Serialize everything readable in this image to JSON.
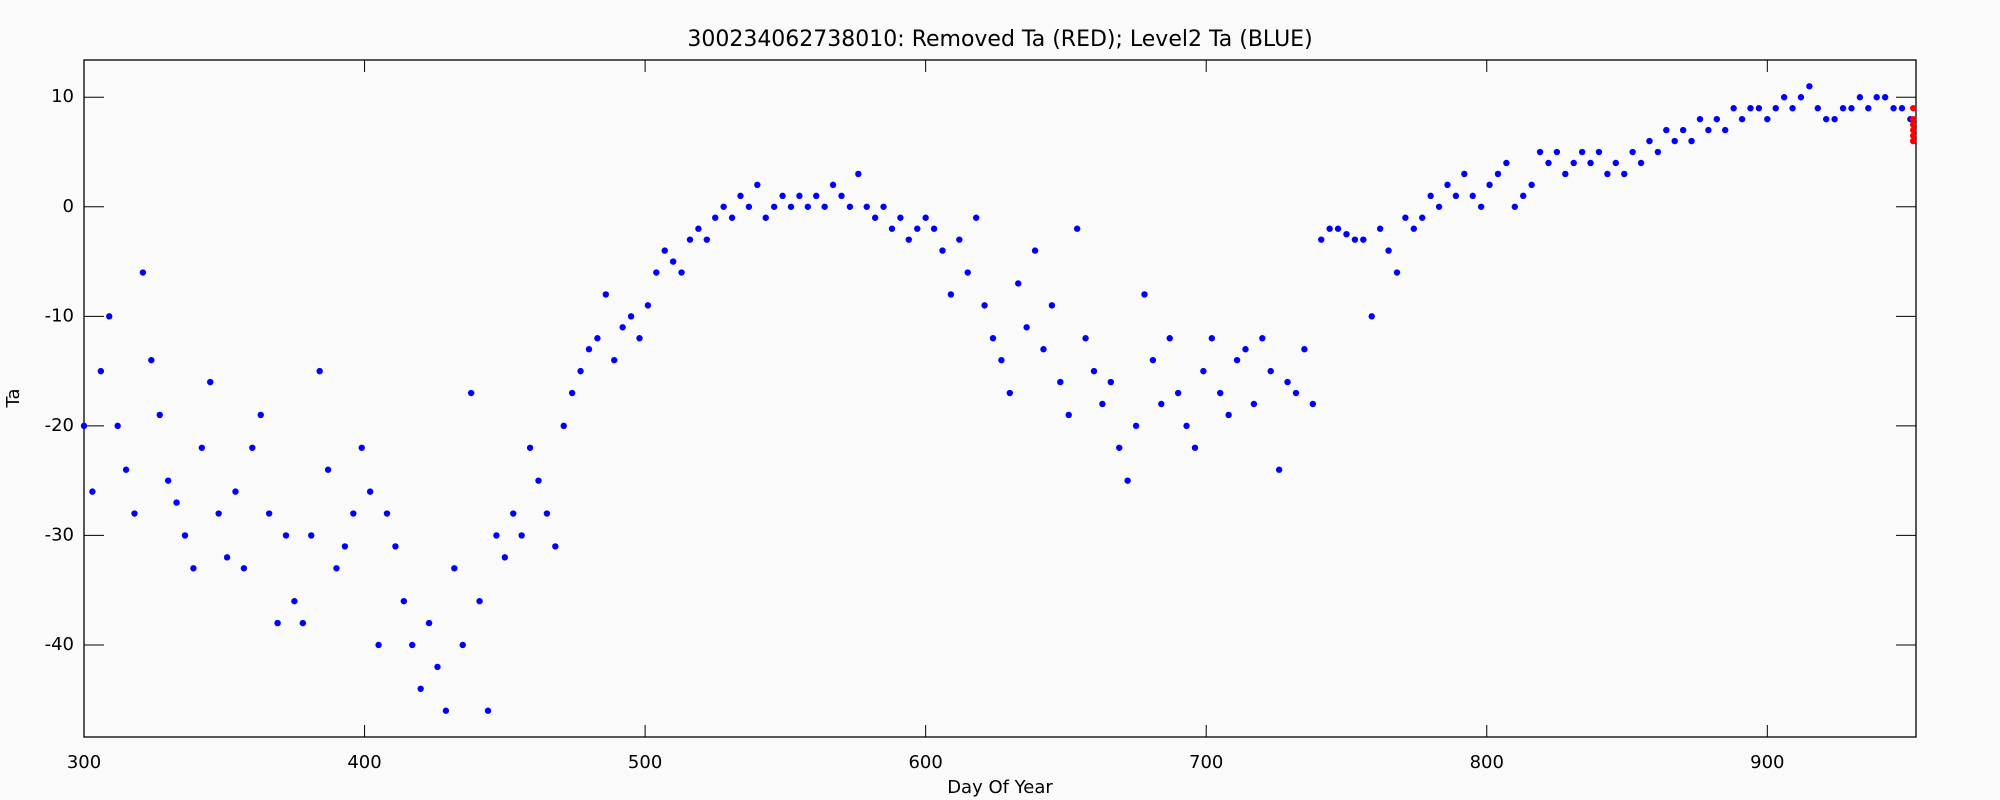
{
  "chart_data": {
    "type": "scatter",
    "title": "300234062738010: Removed Ta (RED); Level2 Ta (BLUE)",
    "x_label": "Day Of Year",
    "y_label": "Ta",
    "xlim": [
      300,
      953
    ],
    "ylim": [
      -48.4,
      13.4
    ],
    "xticks": [
      300,
      400,
      500,
      600,
      700,
      800,
      900
    ],
    "yticks": [
      -40,
      -30,
      -20,
      -10,
      0,
      10
    ],
    "series": [
      {
        "name": "Level2 Ta",
        "color": "#0000ff",
        "x": [
          300,
          303,
          306,
          309,
          312,
          315,
          318,
          321,
          324,
          327,
          330,
          333,
          336,
          339,
          342,
          345,
          348,
          351,
          354,
          357,
          360,
          363,
          366,
          369,
          372,
          375,
          378,
          381,
          384,
          387,
          390,
          393,
          396,
          399,
          402,
          405,
          408,
          411,
          414,
          417,
          420,
          423,
          426,
          429,
          432,
          435,
          438,
          441,
          444,
          447,
          450,
          453,
          456,
          459,
          462,
          465,
          468,
          471,
          474,
          477,
          480,
          483,
          486,
          489,
          492,
          495,
          498,
          501,
          504,
          507,
          510,
          513,
          516,
          519,
          522,
          525,
          528,
          531,
          534,
          537,
          540,
          543,
          546,
          549,
          552,
          555,
          558,
          561,
          564,
          567,
          570,
          573,
          576,
          579,
          582,
          585,
          588,
          591,
          594,
          597,
          600,
          603,
          606,
          609,
          612,
          615,
          618,
          621,
          624,
          627,
          630,
          633,
          636,
          639,
          642,
          645,
          648,
          651,
          654,
          657,
          660,
          663,
          666,
          669,
          672,
          675,
          678,
          681,
          684,
          687,
          690,
          693,
          696,
          699,
          702,
          705,
          708,
          711,
          714,
          717,
          720,
          723,
          726,
          729,
          732,
          735,
          738,
          741,
          744,
          747,
          750,
          753,
          756,
          759,
          762,
          765,
          768,
          771,
          774,
          777,
          780,
          783,
          786,
          789,
          792,
          795,
          798,
          801,
          804,
          807,
          810,
          813,
          816,
          819,
          822,
          825,
          828,
          831,
          834,
          837,
          840,
          843,
          846,
          849,
          852,
          855,
          858,
          861,
          864,
          867,
          870,
          873,
          876,
          879,
          882,
          885,
          888,
          891,
          894,
          897,
          900,
          903,
          906,
          909,
          912,
          915,
          918,
          921,
          924,
          927,
          930,
          933,
          936,
          939,
          942,
          945,
          948,
          951
        ],
        "values": [
          -20,
          -26,
          -15,
          -10,
          -20,
          -24,
          -28,
          -6,
          -14,
          -19,
          -25,
          -27,
          -30,
          -33,
          -22,
          -16,
          -28,
          -32,
          -26,
          -33,
          -22,
          -19,
          -28,
          -38,
          -30,
          -36,
          -38,
          -30,
          -15,
          -24,
          -33,
          -31,
          -28,
          -22,
          -26,
          -40,
          -28,
          -31,
          -36,
          -40,
          -44,
          -38,
          -42,
          -46,
          -33,
          -40,
          -17,
          -36,
          -46,
          -30,
          -32,
          -28,
          -30,
          -22,
          -25,
          -28,
          -31,
          -20,
          -17,
          -15,
          -13,
          -12,
          -8,
          -14,
          -11,
          -10,
          -12,
          -9,
          -6,
          -4,
          -5,
          -6,
          -3,
          -2,
          -3,
          -1,
          0,
          -1,
          1,
          0,
          2,
          -1,
          0,
          1,
          0,
          1,
          0,
          1,
          0,
          2,
          1,
          0,
          3,
          0,
          -1,
          0,
          -2,
          -1,
          -3,
          -2,
          -1,
          -2,
          -4,
          -8,
          -3,
          -6,
          -1,
          -9,
          -12,
          -14,
          -17,
          -7,
          -11,
          -4,
          -13,
          -9,
          -16,
          -19,
          -2,
          -12,
          -15,
          -18,
          -16,
          -22,
          -25,
          -20,
          -8,
          -14,
          -18,
          -12,
          -17,
          -20,
          -22,
          -15,
          -12,
          -17,
          -19,
          -14,
          -13,
          -18,
          -12,
          -15,
          -24,
          -16,
          -17,
          -13,
          -18,
          -3,
          -2,
          -2,
          -2.5,
          -3,
          -3,
          -10,
          -2,
          -4,
          -6,
          -1,
          -2,
          -1,
          1,
          0,
          2,
          1,
          3,
          1,
          0,
          2,
          3,
          4,
          0,
          1,
          2,
          5,
          4,
          5,
          3,
          4,
          5,
          4,
          5,
          3,
          4,
          3,
          5,
          4,
          6,
          5,
          7,
          6,
          7,
          6,
          8,
          7,
          8,
          7,
          9,
          8,
          9,
          9,
          8,
          9,
          10,
          9,
          10,
          11,
          9,
          8,
          8,
          9,
          9,
          10,
          9,
          10,
          10,
          9,
          9,
          8
        ]
      },
      {
        "name": "Removed Ta",
        "color": "#ff0000",
        "x": [
          952,
          952,
          952,
          952,
          952,
          952
        ],
        "values": [
          6,
          7,
          8,
          9,
          7.5,
          6.5
        ]
      }
    ]
  }
}
